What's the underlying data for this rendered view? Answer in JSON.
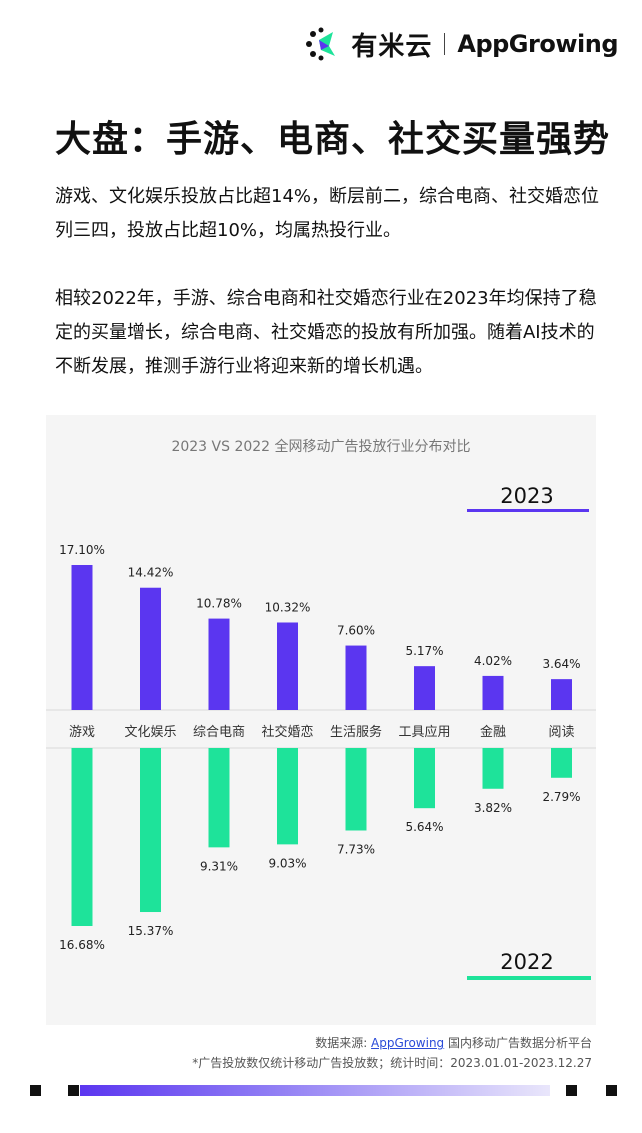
{
  "header": {
    "brand_youmi": "有米云",
    "brand_appgrowing": "AppGrowing"
  },
  "headline": "大盘：手游、电商、社交买量强势",
  "paragraphs": [
    "游戏、文化娱乐投放占比超14%，断层前二，综合电商、社交婚恋位列三四，投放占比超10%，均属热投行业。",
    "相较2022年，手游、综合电商和社交婚恋行业在2023年均保持了稳定的买量增长，综合电商、社交婚恋的投放有所加强。随着AI技术的不断发展，推测手游行业将迎来新的增长机遇。"
  ],
  "chart_data": {
    "type": "bar",
    "title": "2023 VS 2022 全网移动广告投放行业分布对比",
    "categories": [
      "游戏",
      "文化娱乐",
      "综合电商",
      "社交婚恋",
      "生活服务",
      "工具应用",
      "金融",
      "阅读"
    ],
    "series": [
      {
        "name": "2023",
        "values": [
          17.1,
          14.42,
          10.78,
          10.32,
          7.6,
          5.17,
          4.02,
          3.64
        ],
        "labels": [
          "17.10%",
          "14.42%",
          "10.78%",
          "10.32%",
          "7.60%",
          "5.17%",
          "4.02%",
          "3.64%"
        ],
        "color": "#5b36f0"
      },
      {
        "name": "2022",
        "values": [
          16.68,
          15.37,
          9.31,
          9.03,
          7.73,
          5.64,
          3.82,
          2.79
        ],
        "labels": [
          "16.68%",
          "15.37%",
          "9.31%",
          "9.03%",
          "7.73%",
          "5.64%",
          "3.82%",
          "2.79%"
        ],
        "color": "#1ee39a"
      }
    ],
    "unit": "%",
    "grid": false
  },
  "footer": {
    "source_prefix": "数据来源: ",
    "source_link": "AppGrowing",
    "source_suffix": " 国内移动广告数据分析平台",
    "note": "*广告投放数仅统计移动广告投放数；统计时间：2023.01.01-2023.12.27"
  },
  "colors": {
    "purple": "#5b36f0",
    "green": "#1ee39a",
    "panel": "#f5f5f5"
  }
}
